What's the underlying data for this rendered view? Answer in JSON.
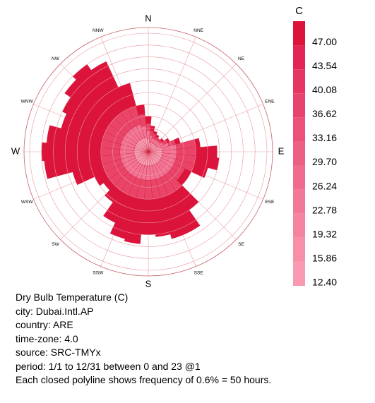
{
  "chart_data": {
    "type": "windrose",
    "direction_labels": [
      "N",
      "NNE",
      "NE",
      "ENE",
      "E",
      "ESE",
      "SE",
      "SSE",
      "S",
      "SSW",
      "SW",
      "WSW",
      "W",
      "WNW",
      "NW",
      "NNW"
    ],
    "rlim": [
      0,
      500
    ],
    "rticks": [
      50,
      100,
      150,
      200,
      250,
      300,
      350,
      400,
      450,
      500
    ],
    "series": [
      {
        "color": "#f7a3b7",
        "values": [
          50,
          40,
          40,
          40,
          40,
          40,
          40,
          50,
          60,
          60,
          60,
          60,
          60,
          60,
          60,
          60,
          60,
          60,
          60,
          60,
          60,
          60,
          60,
          60,
          60,
          60,
          60,
          60,
          60,
          60,
          60,
          60,
          60,
          60,
          60,
          60
        ]
      },
      {
        "color": "#f27595",
        "values": [
          40,
          30,
          20,
          20,
          20,
          20,
          30,
          40,
          60,
          60,
          60,
          60,
          60,
          60,
          60,
          60,
          60,
          60,
          60,
          60,
          60,
          60,
          60,
          60,
          60,
          60,
          60,
          60,
          60,
          60,
          60,
          60,
          60,
          60,
          60,
          50
        ]
      },
      {
        "color": "#ea4469",
        "values": [
          30,
          20,
          20,
          10,
          10,
          10,
          20,
          30,
          80,
          80,
          80,
          80,
          50,
          50,
          80,
          80,
          80,
          80,
          80,
          80,
          80,
          80,
          80,
          80,
          80,
          80,
          80,
          80,
          80,
          80,
          80,
          80,
          80,
          80,
          80,
          50
        ]
      },
      {
        "color": "#dc143c",
        "values": [
          30,
          20,
          10,
          10,
          0,
          10,
          10,
          20,
          20,
          90,
          100,
          60,
          30,
          30,
          100,
          180,
          180,
          160,
          150,
          190,
          180,
          130,
          60,
          30,
          50,
          130,
          240,
          250,
          230,
          180,
          200,
          230,
          250,
          220,
          100,
          40
        ]
      }
    ],
    "legend_title": "C",
    "clim": [
      12.4,
      50.46
    ],
    "colorbar_ticks": [
      {
        "value": 12.4,
        "label": "12.40"
      },
      {
        "value": 15.86,
        "label": "15.86"
      },
      {
        "value": 19.32,
        "label": "19.32"
      },
      {
        "value": 22.78,
        "label": "22.78"
      },
      {
        "value": 26.24,
        "label": "26.24"
      },
      {
        "value": 29.7,
        "label": "29.70"
      },
      {
        "value": 33.16,
        "label": "33.16"
      },
      {
        "value": 36.62,
        "label": "36.62"
      },
      {
        "value": 40.08,
        "label": "40.08"
      },
      {
        "value": 43.54,
        "label": "43.54"
      },
      {
        "value": 47,
        "label": "47.00"
      }
    ],
    "colorbar_colors": [
      "#f99ab2",
      "#f78fa9",
      "#f584a0",
      "#f37898",
      "#f06c8e",
      "#ee5f84",
      "#eb5179",
      "#e8436e",
      "#e53562",
      "#e12655",
      "#dc143c"
    ],
    "text_lines": [
      "Dry Bulb Temperature (C)",
      "city: Dubai.Intl.AP",
      "country: ARE",
      "time-zone: 4.0",
      "source: SRC-TMYx",
      "period: 1/1 to 12/31 between 0 and 23 @1",
      "Each closed polyline shows frequency of 0.6% = 50 hours."
    ]
  }
}
